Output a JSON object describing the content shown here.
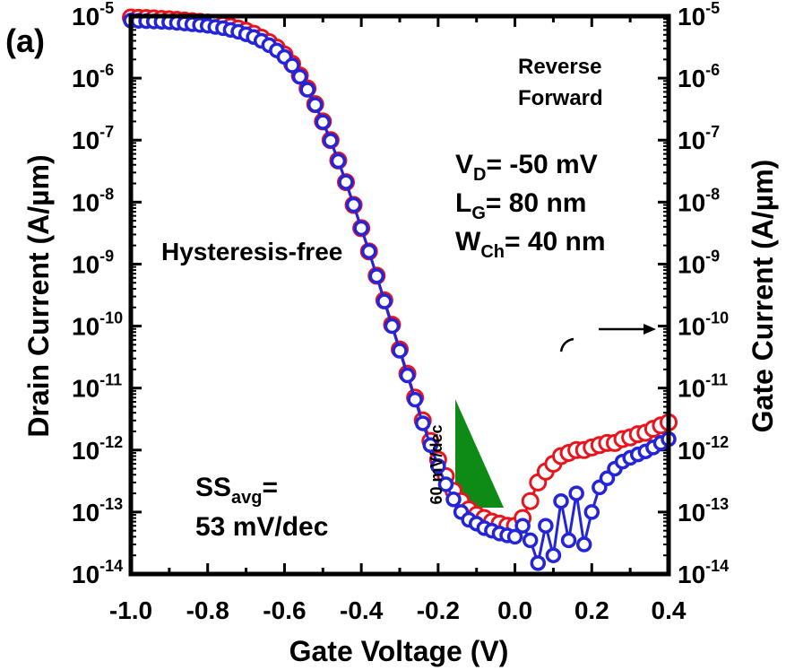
{
  "panel_label": "(a)",
  "chart_data": {
    "type": "scatter",
    "xlabel": "Gate Voltage (V)",
    "ylabel_left": "Drain Current (A/µm)",
    "ylabel_right": "Gate Current (A/µm)",
    "xlim": [
      -1.0,
      0.4
    ],
    "ylim": [
      1e-14,
      1e-05
    ],
    "yscale": "log",
    "x_ticks": [
      -1.0,
      -0.8,
      -0.6,
      -0.4,
      -0.2,
      0.0,
      0.2,
      0.4
    ],
    "x_tick_labels": [
      "-1.0",
      "-0.8",
      "-0.6",
      "-0.4",
      "-0.2",
      "0.0",
      "0.2",
      "0.4"
    ],
    "y_tick_exponents": [
      -5,
      -6,
      -7,
      -8,
      -9,
      -10,
      -11,
      -12,
      -13,
      -14
    ],
    "y_tick_base": "10",
    "legend": [
      "Reverse",
      "Forward"
    ],
    "legend_placement": "top-right",
    "colors": {
      "reverse": "#e8141e",
      "forward": "#2424d8",
      "triangle": "#0e8a16",
      "hysteresis_text": "#14851c"
    },
    "annotations": {
      "hysteresis": "Hysteresis-free",
      "vd": {
        "symbol": "V",
        "sub": "D",
        "value": "= -50 mV"
      },
      "lg": {
        "symbol": "L",
        "sub": "G",
        "value": "= 80 nm"
      },
      "wch": {
        "symbol": "W",
        "sub": "Ch",
        "value": "= 40 nm"
      },
      "ss": {
        "symbol": "SS",
        "sub": "avg",
        "value": "=",
        "line2": "53 mV/dec"
      },
      "slope": "60 mV/dec"
    },
    "series": [
      {
        "name": "Reverse",
        "x": [
          -1.0,
          -0.98,
          -0.96,
          -0.94,
          -0.92,
          -0.9,
          -0.88,
          -0.86,
          -0.84,
          -0.82,
          -0.8,
          -0.78,
          -0.76,
          -0.74,
          -0.72,
          -0.7,
          -0.68,
          -0.66,
          -0.64,
          -0.62,
          -0.6,
          -0.58,
          -0.56,
          -0.54,
          -0.52,
          -0.5,
          -0.48,
          -0.46,
          -0.44,
          -0.42,
          -0.4,
          -0.38,
          -0.36,
          -0.34,
          -0.32,
          -0.3,
          -0.28,
          -0.26,
          -0.24,
          -0.22,
          -0.2,
          -0.18,
          -0.16,
          -0.14,
          -0.12,
          -0.1,
          -0.08,
          -0.06,
          -0.04,
          -0.02,
          0.0,
          0.02,
          0.04,
          0.06,
          0.08,
          0.1,
          0.12,
          0.14,
          0.16,
          0.18,
          0.2,
          0.22,
          0.24,
          0.26,
          0.28,
          0.3,
          0.32,
          0.34,
          0.36,
          0.38,
          0.4
        ],
        "y": [
          9.5e-06,
          9.4e-06,
          9.3e-06,
          9.2e-06,
          9e-06,
          8.9e-06,
          8.7e-06,
          8.5e-06,
          8.3e-06,
          8.1e-06,
          7.9e-06,
          7.6e-06,
          7.2e-06,
          6.8e-06,
          6.3e-06,
          5.8e-06,
          5.2e-06,
          4.5e-06,
          3.8e-06,
          3.1e-06,
          2.4e-06,
          1.7e-06,
          1.1e-06,
          6.8e-07,
          3.8e-07,
          2e-07,
          1e-07,
          4.7e-08,
          2.1e-08,
          9e-09,
          3.8e-09,
          1.6e-09,
          6.5e-10,
          2.6e-10,
          1.05e-10,
          4.2e-11,
          1.7e-11,
          7e-12,
          3e-12,
          1.4e-12,
          7e-13,
          3.8e-13,
          2.2e-13,
          1.5e-13,
          1.1e-13,
          9e-14,
          8e-14,
          7e-14,
          6.5e-14,
          6e-14,
          6e-14,
          8e-14,
          1.5e-13,
          3e-13,
          4.5e-13,
          6e-13,
          8e-13,
          9e-13,
          1e-12,
          1e-12,
          1.1e-12,
          1.2e-12,
          1.3e-12,
          1.3e-12,
          1.5e-12,
          1.6e-12,
          1.8e-12,
          1.9e-12,
          2.2e-12,
          2.5e-12,
          2.8e-12
        ]
      },
      {
        "name": "Forward",
        "x": [
          -1.0,
          -0.98,
          -0.96,
          -0.94,
          -0.92,
          -0.9,
          -0.88,
          -0.86,
          -0.84,
          -0.82,
          -0.8,
          -0.78,
          -0.76,
          -0.74,
          -0.72,
          -0.7,
          -0.68,
          -0.66,
          -0.64,
          -0.62,
          -0.6,
          -0.58,
          -0.56,
          -0.54,
          -0.52,
          -0.5,
          -0.48,
          -0.46,
          -0.44,
          -0.42,
          -0.4,
          -0.38,
          -0.36,
          -0.34,
          -0.32,
          -0.3,
          -0.28,
          -0.26,
          -0.24,
          -0.22,
          -0.2,
          -0.18,
          -0.16,
          -0.14,
          -0.12,
          -0.1,
          -0.08,
          -0.06,
          -0.04,
          -0.02,
          0.0,
          0.02,
          0.04,
          0.06,
          0.08,
          0.1,
          0.12,
          0.14,
          0.16,
          0.18,
          0.2,
          0.22,
          0.24,
          0.26,
          0.28,
          0.3,
          0.32,
          0.34,
          0.36,
          0.38,
          0.4
        ],
        "y": [
          8.5e-06,
          8.4e-06,
          8.3e-06,
          8.2e-06,
          8.1e-06,
          8e-06,
          7.8e-06,
          7.6e-06,
          7.4e-06,
          7.2e-06,
          7e-06,
          6.7e-06,
          6.4e-06,
          6e-06,
          5.6e-06,
          5.1e-06,
          4.6e-06,
          4e-06,
          3.4e-06,
          2.8e-06,
          2.2e-06,
          1.6e-06,
          1.05e-06,
          6.5e-07,
          3.7e-07,
          1.95e-07,
          9.8e-08,
          4.6e-08,
          2.1e-08,
          9e-09,
          3.8e-09,
          1.6e-09,
          6.4e-10,
          2.5e-10,
          1e-10,
          4e-11,
          1.6e-11,
          6.5e-12,
          2.7e-12,
          1.2e-12,
          5.5e-13,
          2.8e-13,
          1.6e-13,
          1e-13,
          7.5e-14,
          6.5e-14,
          5.5e-14,
          5e-14,
          4.5e-14,
          4.2e-14,
          4e-14,
          6e-14,
          3.5e-14,
          1.5e-14,
          6e-14,
          2e-14,
          1.5e-13,
          3.5e-14,
          2e-13,
          3e-14,
          1e-13,
          2.5e-13,
          3.5e-13,
          5e-13,
          6.5e-13,
          7.5e-13,
          8.5e-13,
          9.5e-13,
          1.1e-12,
          1.3e-12,
          1.5e-12
        ]
      }
    ]
  }
}
